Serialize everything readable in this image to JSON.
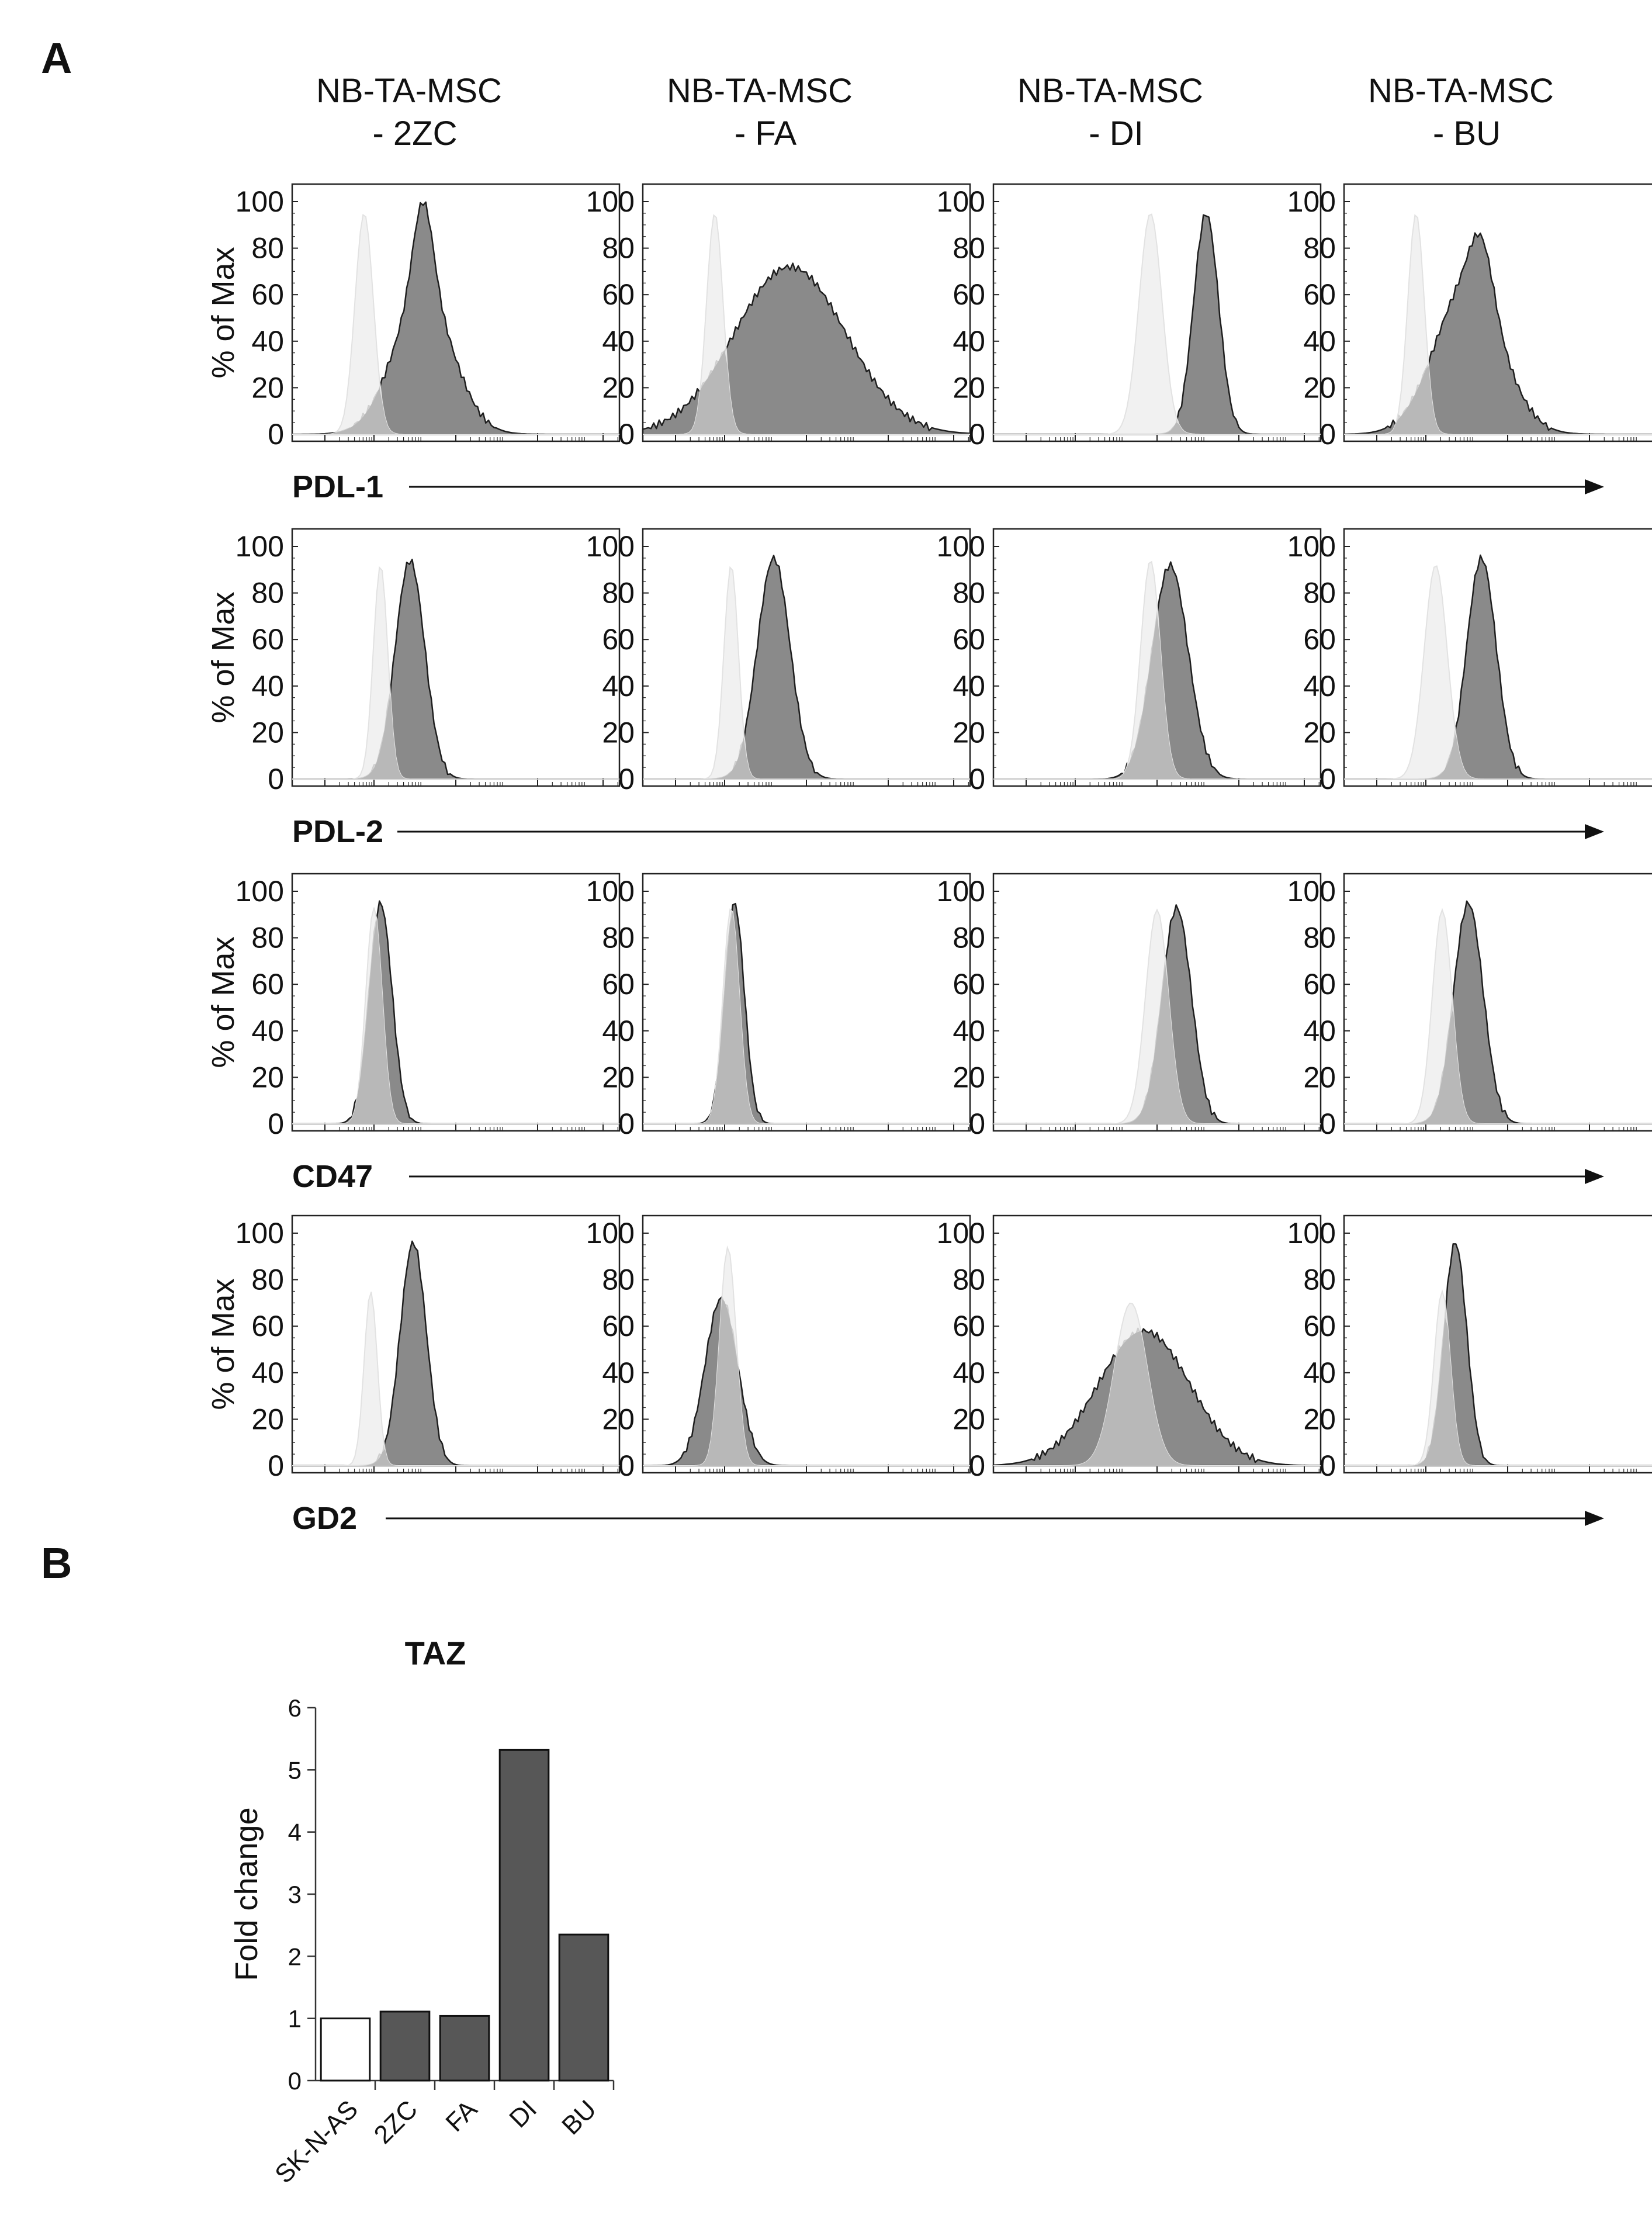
{
  "panel_a_label": "A",
  "panel_b_label": "B",
  "chart_data": [
    {
      "type": "histogram-grid",
      "panel": "A",
      "y_label": "% of Max",
      "y_ticks": [
        "100",
        "80",
        "60",
        "40",
        "20",
        "0"
      ],
      "columns": [
        {
          "line1": "NB-TA-MSC",
          "line2": "- 2ZC"
        },
        {
          "line1": "NB-TA-MSC",
          "line2": "- FA"
        },
        {
          "line1": "NB-TA-MSC",
          "line2": "- DI"
        },
        {
          "line1": "NB-TA-MSC",
          "line2": "- BU"
        }
      ],
      "rows": [
        {
          "marker": "PDL-1",
          "cells": [
            {
              "control": {
                "mu": 0.22,
                "sd": 0.028,
                "h": 95
              },
              "stain": [
                {
                  "mu": 0.4,
                  "sd": 0.09,
                  "h": 60
                },
                {
                  "mu": 0.4,
                  "sd": 0.03,
                  "h": 40
                }
              ]
            },
            {
              "control": {
                "mu": 0.22,
                "sd": 0.025,
                "h": 95
              },
              "stain": [
                {
                  "mu": 0.45,
                  "sd": 0.17,
                  "h": 72
                }
              ]
            },
            {
              "control": {
                "mu": 0.48,
                "sd": 0.035,
                "h": 95
              },
              "stain": [
                {
                  "mu": 0.65,
                  "sd": 0.038,
                  "h": 95
                }
              ]
            },
            {
              "control": {
                "mu": 0.22,
                "sd": 0.025,
                "h": 95
              },
              "stain": [
                {
                  "mu": 0.38,
                  "sd": 0.1,
                  "h": 65
                },
                {
                  "mu": 0.42,
                  "sd": 0.035,
                  "h": 25
                }
              ]
            }
          ]
        },
        {
          "marker": "PDL-2",
          "cells": [
            {
              "control": {
                "mu": 0.27,
                "sd": 0.022,
                "h": 92
              },
              "stain": [
                {
                  "mu": 0.36,
                  "sd": 0.045,
                  "h": 94
                }
              ]
            },
            {
              "control": {
                "mu": 0.27,
                "sd": 0.022,
                "h": 92
              },
              "stain": [
                {
                  "mu": 0.4,
                  "sd": 0.05,
                  "h": 95
                }
              ]
            },
            {
              "control": {
                "mu": 0.48,
                "sd": 0.03,
                "h": 94
              },
              "stain": [
                {
                  "mu": 0.54,
                  "sd": 0.055,
                  "h": 92
                }
              ]
            },
            {
              "control": {
                "mu": 0.28,
                "sd": 0.035,
                "h": 92
              },
              "stain": [
                {
                  "mu": 0.42,
                  "sd": 0.045,
                  "h": 95
                }
              ]
            }
          ]
        },
        {
          "marker": "CD47",
          "cells": [
            {
              "control": {
                "mu": 0.25,
                "sd": 0.025,
                "h": 93
              },
              "stain": [
                {
                  "mu": 0.27,
                  "sd": 0.035,
                  "h": 95
                }
              ]
            },
            {
              "control": {
                "mu": 0.27,
                "sd": 0.025,
                "h": 93
              },
              "stain": [
                {
                  "mu": 0.28,
                  "sd": 0.03,
                  "h": 95
                }
              ]
            },
            {
              "control": {
                "mu": 0.5,
                "sd": 0.035,
                "h": 92
              },
              "stain": [
                {
                  "mu": 0.56,
                  "sd": 0.045,
                  "h": 93
                }
              ]
            },
            {
              "control": {
                "mu": 0.3,
                "sd": 0.03,
                "h": 92
              },
              "stain": [
                {
                  "mu": 0.38,
                  "sd": 0.045,
                  "h": 95
                }
              ]
            }
          ]
        },
        {
          "marker": "GD2",
          "cells": [
            {
              "control": {
                "mu": 0.24,
                "sd": 0.02,
                "h": 75
              },
              "stain": [
                {
                  "mu": 0.37,
                  "sd": 0.04,
                  "h": 96
                }
              ]
            },
            {
              "control": {
                "mu": 0.26,
                "sd": 0.025,
                "h": 94
              },
              "stain": [
                {
                  "mu": 0.24,
                  "sd": 0.05,
                  "h": 72
                }
              ]
            },
            {
              "control": {
                "mu": 0.42,
                "sd": 0.05,
                "h": 70
              },
              "stain": [
                {
                  "mu": 0.46,
                  "sd": 0.14,
                  "h": 58
                }
              ]
            },
            {
              "control": {
                "mu": 0.3,
                "sd": 0.025,
                "h": 75
              },
              "stain": [
                {
                  "mu": 0.34,
                  "sd": 0.035,
                  "h": 96
                }
              ]
            }
          ]
        }
      ]
    },
    {
      "type": "bar",
      "panel": "B",
      "title": "TAZ",
      "ylabel": "Fold change",
      "xlabel": "",
      "categories": [
        "SK-N-AS",
        "2ZC",
        "FA",
        "DI",
        "BU"
      ],
      "values": [
        1.0,
        1.11,
        1.04,
        5.32,
        2.35
      ],
      "ylim": [
        0,
        6
      ],
      "yticks": [
        0,
        1,
        2,
        3,
        4,
        5,
        6
      ],
      "colors": [
        "#ffffff",
        "#575757",
        "#575757",
        "#575757",
        "#575757"
      ]
    }
  ]
}
